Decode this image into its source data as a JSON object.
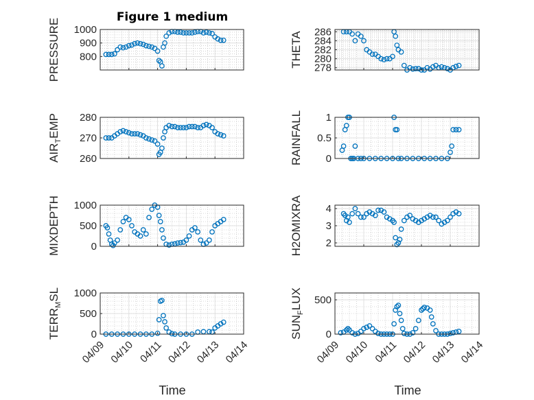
{
  "title": "Figure 1 medium",
  "xlabel": "Time",
  "x_tick_labels": [
    "04/09",
    "04/10",
    "04/11",
    "04/12",
    "04/13",
    "04/14"
  ],
  "colors": {
    "marker": "#0072BD",
    "axis": "#262626",
    "grid": "#b3b3b3"
  },
  "chart_data": [
    {
      "type": "scatter",
      "ylabel": "PRESSURE",
      "title": "Figure 1 medium",
      "xlim": [
        "04/09",
        "04/14"
      ],
      "ylim": [
        700,
        1000
      ],
      "yticks": [
        800,
        900,
        1000
      ],
      "grid": true,
      "x": [
        9.2,
        9.3,
        9.4,
        9.5,
        9.6,
        9.7,
        9.8,
        9.9,
        10.0,
        10.1,
        10.2,
        10.3,
        10.4,
        10.5,
        10.6,
        10.7,
        10.8,
        10.9,
        11.0,
        11.05,
        11.1,
        11.15,
        11.2,
        11.25,
        11.3,
        11.4,
        11.5,
        11.6,
        11.7,
        11.8,
        11.9,
        12.0,
        12.1,
        12.2,
        12.3,
        12.4,
        12.5,
        12.6,
        12.7,
        12.8,
        12.9,
        13.0,
        13.1,
        13.2,
        13.3
      ],
      "values": [
        815,
        815,
        815,
        820,
        850,
        870,
        865,
        870,
        880,
        885,
        895,
        900,
        895,
        890,
        880,
        875,
        870,
        860,
        840,
        770,
        760,
        730,
        870,
        900,
        950,
        975,
        985,
        985,
        980,
        980,
        975,
        975,
        975,
        975,
        980,
        985,
        985,
        975,
        980,
        975,
        970,
        945,
        930,
        920,
        920
      ]
    },
    {
      "type": "scatter",
      "ylabel": "THETA",
      "xlim": [
        "04/09",
        "04/14"
      ],
      "ylim": [
        277.5,
        286.5
      ],
      "yticks": [
        278,
        280,
        282,
        284,
        286
      ],
      "grid": true,
      "x": [
        9.3,
        9.4,
        9.5,
        9.6,
        9.7,
        9.8,
        9.9,
        10.0,
        10.1,
        10.2,
        10.3,
        10.4,
        10.5,
        10.6,
        10.7,
        10.8,
        10.9,
        11.0,
        11.05,
        11.1,
        11.15,
        11.2,
        11.3,
        11.4,
        11.5,
        11.6,
        11.7,
        11.8,
        11.9,
        12.0,
        12.1,
        12.2,
        12.3,
        12.4,
        12.5,
        12.6,
        12.7,
        12.8,
        12.9,
        13.0,
        13.1,
        13.2,
        13.3
      ],
      "values": [
        286,
        286,
        286,
        285.5,
        284,
        285.5,
        285,
        284,
        282,
        281.5,
        281,
        281,
        280.5,
        280,
        279.8,
        280,
        280,
        280.5,
        286,
        285,
        283,
        282,
        281.5,
        278.5,
        277.5,
        278,
        277.7,
        277.8,
        277.8,
        277.5,
        277.5,
        278,
        277.7,
        278.2,
        278.5,
        278,
        278.2,
        278,
        277.8,
        277.5,
        278,
        278.3,
        278.5
      ]
    },
    {
      "type": "scatter",
      "ylabel": "AIR_TEMP",
      "xlim": [
        "04/09",
        "04/14"
      ],
      "ylim": [
        260,
        280
      ],
      "yticks": [
        260,
        270,
        280
      ],
      "grid": true,
      "x": [
        9.2,
        9.3,
        9.4,
        9.5,
        9.6,
        9.7,
        9.8,
        9.9,
        10.0,
        10.1,
        10.2,
        10.3,
        10.4,
        10.5,
        10.6,
        10.7,
        10.8,
        10.9,
        11.0,
        11.05,
        11.1,
        11.15,
        11.2,
        11.25,
        11.3,
        11.4,
        11.5,
        11.6,
        11.7,
        11.8,
        11.9,
        12.0,
        12.1,
        12.2,
        12.3,
        12.4,
        12.5,
        12.6,
        12.7,
        12.8,
        12.9,
        13.0,
        13.1,
        13.2,
        13.3
      ],
      "values": [
        270,
        270,
        270,
        271,
        272,
        273,
        273.5,
        273,
        272.5,
        272,
        272,
        272,
        271.5,
        271,
        270,
        269.5,
        269,
        268.5,
        267,
        262,
        263,
        265,
        270,
        273,
        275,
        276,
        275.5,
        275.5,
        275,
        275,
        275,
        275,
        275.5,
        275.5,
        275.5,
        275,
        275,
        276,
        276.5,
        276,
        275,
        273,
        272,
        271.5,
        271
      ]
    },
    {
      "type": "scatter",
      "ylabel": "RAINFALL",
      "xlim": [
        "04/09",
        "04/14"
      ],
      "ylim": [
        0,
        1
      ],
      "yticks": [
        0,
        0.5,
        1
      ],
      "grid": true,
      "x": [
        9.25,
        9.3,
        9.35,
        9.4,
        9.45,
        9.5,
        9.55,
        9.6,
        9.65,
        9.7,
        9.8,
        9.9,
        10.0,
        10.2,
        10.4,
        10.6,
        10.8,
        11.0,
        11.05,
        11.1,
        11.15,
        11.2,
        11.3,
        11.5,
        11.7,
        11.9,
        12.1,
        12.3,
        12.5,
        12.7,
        12.9,
        13.0,
        13.05,
        13.1,
        13.2,
        13.3
      ],
      "values": [
        0.2,
        0.3,
        0.7,
        0.8,
        1.0,
        1.0,
        0.0,
        0.0,
        0.0,
        0.3,
        0.0,
        0.0,
        0.0,
        0.0,
        0.0,
        0.0,
        0.0,
        0.0,
        1.0,
        0.7,
        0.7,
        0.0,
        0.0,
        0.0,
        0.0,
        0.0,
        0.0,
        0.0,
        0.0,
        0.0,
        0.0,
        0.15,
        0.3,
        0.7,
        0.7,
        0.7
      ]
    },
    {
      "type": "scatter",
      "ylabel": "MIXDEPTH",
      "xlim": [
        "04/09",
        "04/14"
      ],
      "ylim": [
        0,
        1000
      ],
      "yticks": [
        0,
        500,
        1000
      ],
      "grid": true,
      "x": [
        9.2,
        9.25,
        9.3,
        9.35,
        9.4,
        9.45,
        9.5,
        9.6,
        9.7,
        9.8,
        9.9,
        10.0,
        10.1,
        10.2,
        10.3,
        10.4,
        10.5,
        10.6,
        10.7,
        10.8,
        10.9,
        11.0,
        11.05,
        11.1,
        11.15,
        11.2,
        11.3,
        11.4,
        11.5,
        11.6,
        11.7,
        11.8,
        11.9,
        12.0,
        12.1,
        12.2,
        12.3,
        12.4,
        12.5,
        12.6,
        12.7,
        12.8,
        12.9,
        13.0,
        13.1,
        13.2,
        13.3
      ],
      "values": [
        500,
        450,
        300,
        150,
        50,
        20,
        80,
        150,
        400,
        600,
        700,
        650,
        500,
        350,
        300,
        250,
        400,
        300,
        700,
        900,
        1000,
        950,
        750,
        600,
        400,
        200,
        50,
        30,
        50,
        60,
        80,
        90,
        100,
        150,
        250,
        400,
        450,
        350,
        150,
        50,
        80,
        150,
        350,
        500,
        550,
        600,
        650
      ]
    },
    {
      "type": "scatter",
      "ylabel": "H2OMIXRA",
      "xlim": [
        "04/09",
        "04/14"
      ],
      "ylim": [
        1.8,
        4.2
      ],
      "yticks": [
        2,
        3,
        4
      ],
      "grid": true,
      "x": [
        9.3,
        9.35,
        9.4,
        9.45,
        9.5,
        9.6,
        9.7,
        9.8,
        9.9,
        10.0,
        10.1,
        10.2,
        10.3,
        10.4,
        10.5,
        10.6,
        10.7,
        10.8,
        10.9,
        11.0,
        11.05,
        11.1,
        11.15,
        11.2,
        11.25,
        11.3,
        11.4,
        11.5,
        11.6,
        11.7,
        11.8,
        11.9,
        12.0,
        12.1,
        12.2,
        12.3,
        12.4,
        12.5,
        12.6,
        12.7,
        12.8,
        12.9,
        13.0,
        13.1,
        13.2,
        13.3
      ],
      "values": [
        3.7,
        3.6,
        3.3,
        3.5,
        3.2,
        3.7,
        4.0,
        3.7,
        3.5,
        3.5,
        3.7,
        3.8,
        3.7,
        3.6,
        3.9,
        3.9,
        3.8,
        3.5,
        3.4,
        3.3,
        3.2,
        2.3,
        1.9,
        2.0,
        2.2,
        2.8,
        3.3,
        3.5,
        3.6,
        3.4,
        3.3,
        3.2,
        3.3,
        3.4,
        3.5,
        3.6,
        3.5,
        3.5,
        3.3,
        3.1,
        3.2,
        3.3,
        3.5,
        3.7,
        3.8,
        3.7
      ]
    },
    {
      "type": "scatter",
      "ylabel": "TERR_MSL",
      "xlim": [
        "04/09",
        "04/14"
      ],
      "ylim": [
        0,
        1000
      ],
      "yticks": [
        0,
        500,
        1000
      ],
      "grid": true,
      "x": [
        9.2,
        9.4,
        9.6,
        9.8,
        10.0,
        10.2,
        10.4,
        10.6,
        10.8,
        11.0,
        11.05,
        11.1,
        11.15,
        11.2,
        11.25,
        11.3,
        11.4,
        11.5,
        11.6,
        11.8,
        12.0,
        12.2,
        12.4,
        12.6,
        12.8,
        12.9,
        13.0,
        13.1,
        13.2,
        13.3
      ],
      "values": [
        0,
        0,
        0,
        0,
        0,
        0,
        0,
        0,
        0,
        20,
        350,
        800,
        820,
        450,
        300,
        150,
        50,
        10,
        0,
        0,
        0,
        0,
        50,
        60,
        60,
        50,
        150,
        200,
        250,
        290
      ]
    },
    {
      "type": "scatter",
      "ylabel": "SUN_FLUX",
      "xlim": [
        "04/09",
        "04/14"
      ],
      "ylim": [
        0,
        600
      ],
      "yticks": [
        0,
        500
      ],
      "grid": true,
      "x": [
        9.2,
        9.3,
        9.4,
        9.45,
        9.5,
        9.6,
        9.7,
        9.8,
        9.9,
        10.0,
        10.1,
        10.2,
        10.3,
        10.4,
        10.5,
        10.6,
        10.7,
        10.8,
        10.9,
        11.0,
        11.05,
        11.1,
        11.15,
        11.2,
        11.25,
        11.3,
        11.35,
        11.4,
        11.5,
        11.6,
        11.7,
        11.8,
        11.9,
        12.0,
        12.05,
        12.1,
        12.2,
        12.3,
        12.35,
        12.4,
        12.5,
        12.6,
        12.7,
        12.8,
        12.9,
        13.0,
        13.1,
        13.2,
        13.3
      ],
      "values": [
        20,
        30,
        60,
        80,
        60,
        20,
        0,
        10,
        40,
        80,
        100,
        120,
        80,
        40,
        10,
        0,
        0,
        0,
        0,
        0,
        150,
        350,
        400,
        420,
        300,
        200,
        80,
        10,
        0,
        0,
        20,
        80,
        200,
        350,
        370,
        390,
        380,
        350,
        250,
        150,
        50,
        0,
        0,
        0,
        0,
        10,
        20,
        30,
        40
      ]
    }
  ]
}
